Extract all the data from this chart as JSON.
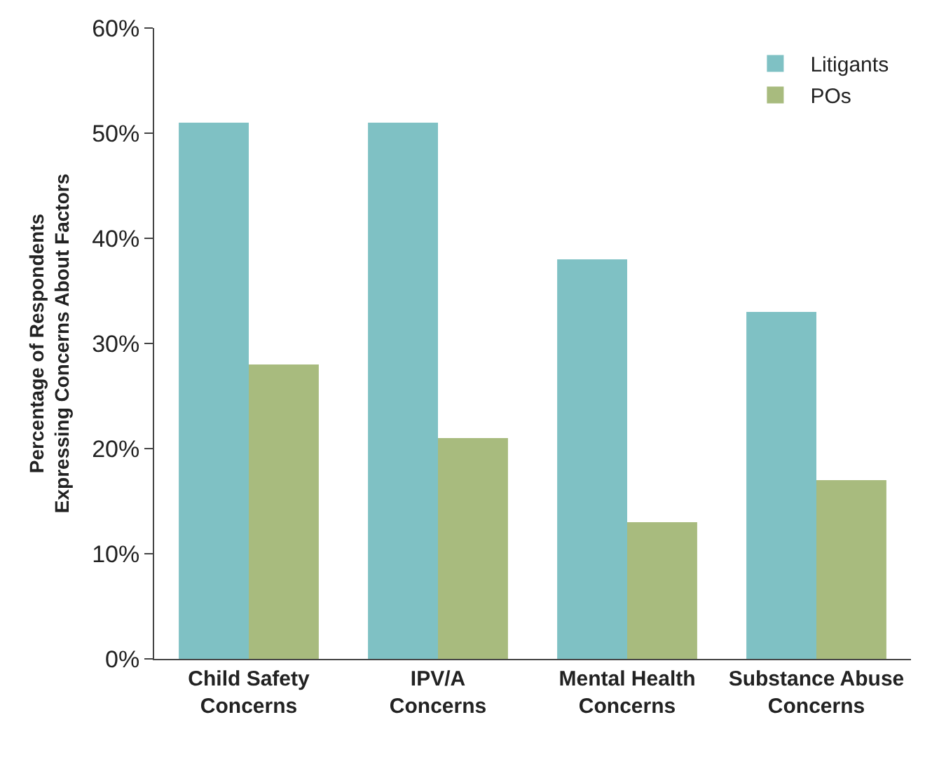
{
  "chart_data": {
    "type": "bar",
    "ylabel": "Percentage of Respondents\nExpressing Concerns About Factors",
    "categories": [
      "Child Safety Concerns",
      "IPV/A Concerns",
      "Mental Health Concerns",
      "Substance Abuse Concerns"
    ],
    "series": [
      {
        "name": "Litigants",
        "color": "#7fc1c4",
        "values": [
          51,
          51,
          38,
          33
        ]
      },
      {
        "name": "POs",
        "color": "#a8bb7e",
        "values": [
          28,
          21,
          13,
          17
        ]
      }
    ],
    "ylim": [
      0,
      60
    ],
    "yticks": [
      {
        "value": 0,
        "label": "0%"
      },
      {
        "value": 10,
        "label": "10%"
      },
      {
        "value": 20,
        "label": "20%"
      },
      {
        "value": 30,
        "label": "30%"
      },
      {
        "value": 40,
        "label": "40%"
      },
      {
        "value": 50,
        "label": "50%"
      },
      {
        "value": 60,
        "label": "60%"
      }
    ],
    "grid": false,
    "legend": "top right"
  }
}
